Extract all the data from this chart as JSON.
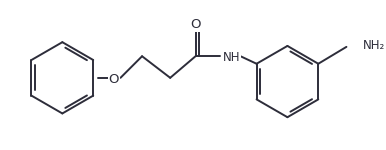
{
  "bg_color": "#ffffff",
  "line_color": "#2d2d3a",
  "text_color": "#2d2d3a",
  "lw": 1.4,
  "font_size": 8.5,
  "fig_width": 3.86,
  "fig_height": 1.5,
  "dpi": 100,
  "xlim": [
    0,
    386
  ],
  "ylim": [
    0,
    150
  ]
}
